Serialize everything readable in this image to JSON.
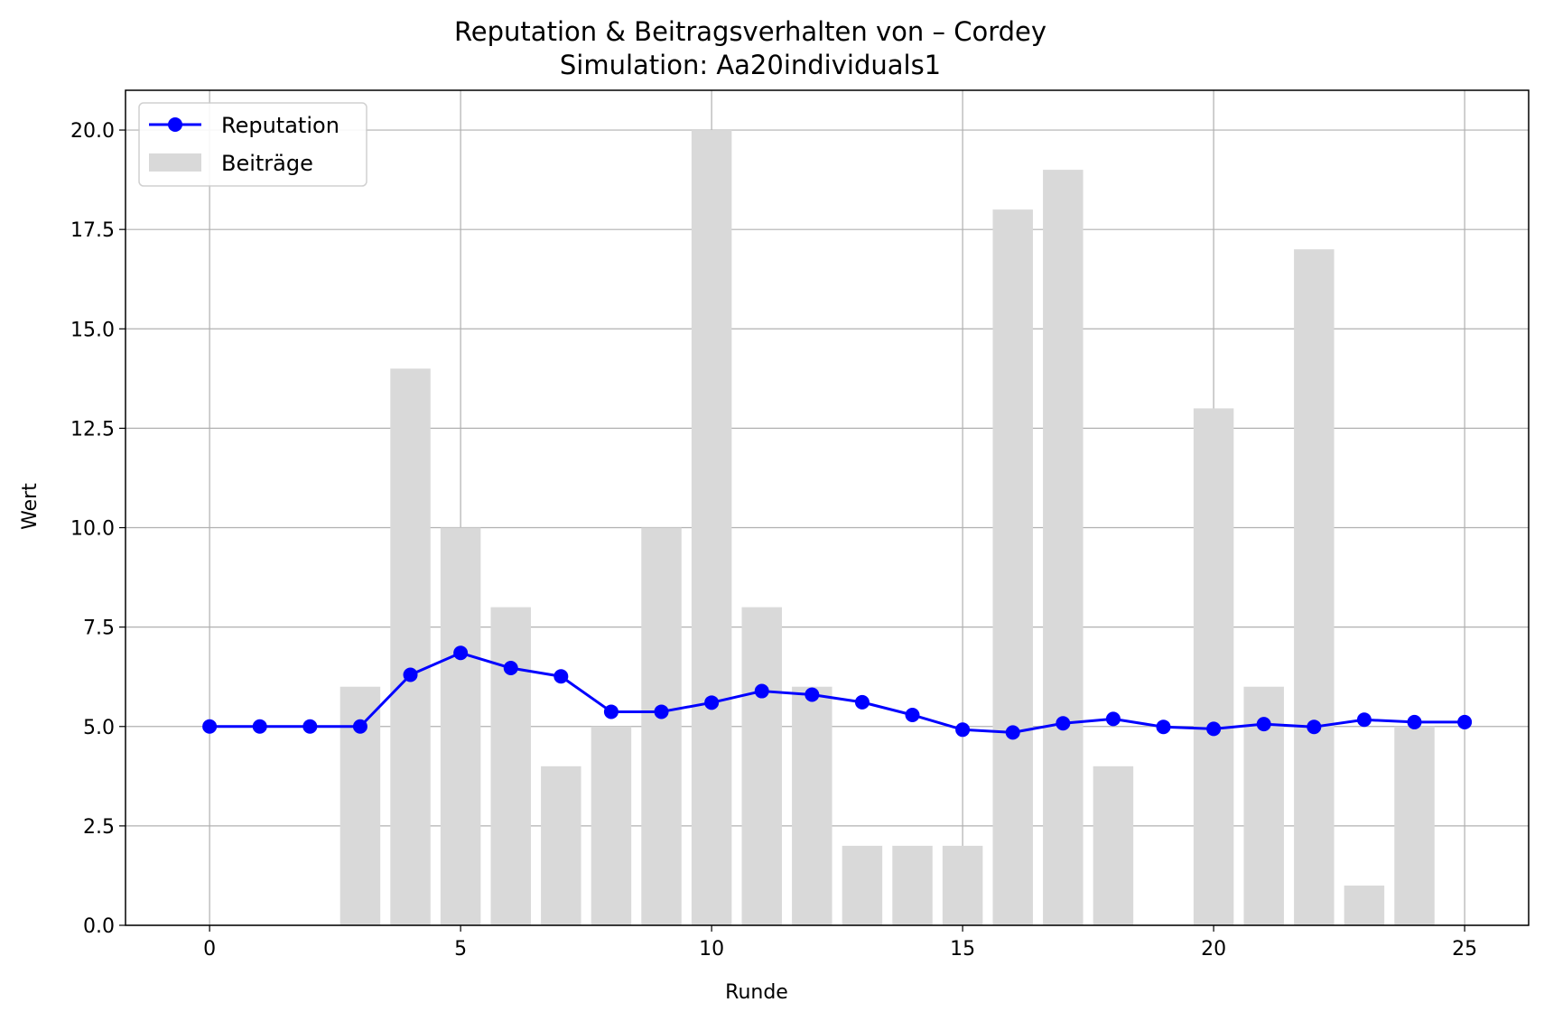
{
  "chart_data": {
    "type": "bar",
    "title": "Reputation & Beitragsverhalten von – Cordey",
    "subtitle": "Simulation: Aa20individuals1",
    "xlabel": "Runde",
    "ylabel": "Wert",
    "xlim": [
      -1.675,
      26.275
    ],
    "ylim": [
      0,
      21
    ],
    "xticks": [
      0,
      5,
      10,
      15,
      20,
      25
    ],
    "yticks": [
      0.0,
      2.5,
      5.0,
      7.5,
      10.0,
      12.5,
      15.0,
      17.5,
      20.0
    ],
    "ytick_labels": [
      "0.0",
      "2.5",
      "5.0",
      "7.5",
      "10.0",
      "12.5",
      "15.0",
      "17.5",
      "20.0"
    ],
    "grid": true,
    "legend_position": "top-left",
    "bar_series": {
      "name": "Beiträge",
      "color": "#d9d9d9",
      "x": [
        0,
        1,
        2,
        3,
        4,
        5,
        6,
        7,
        8,
        9,
        10,
        11,
        12,
        13,
        14,
        15,
        16,
        17,
        18,
        19,
        20,
        21,
        22,
        23,
        24
      ],
      "values": [
        0,
        0,
        0,
        6,
        14,
        10,
        8,
        4,
        5,
        10,
        20,
        8,
        6,
        2,
        2,
        2,
        18,
        19,
        4,
        0,
        13,
        6,
        17,
        1,
        5
      ]
    },
    "line_series": {
      "name": "Reputation",
      "color": "#0000ff",
      "x": [
        0,
        1,
        2,
        3,
        4,
        5,
        6,
        7,
        8,
        9,
        10,
        11,
        12,
        13,
        14,
        15,
        16,
        17,
        18,
        19,
        20,
        21,
        22,
        23,
        24,
        25
      ],
      "values": [
        5.0,
        5.0,
        5.0,
        5.0,
        6.3,
        6.85,
        6.47,
        6.26,
        5.37,
        5.37,
        5.6,
        5.89,
        5.8,
        5.61,
        5.29,
        4.92,
        4.85,
        5.08,
        5.19,
        4.99,
        4.94,
        5.06,
        4.99,
        5.17,
        5.11,
        5.11
      ]
    }
  }
}
